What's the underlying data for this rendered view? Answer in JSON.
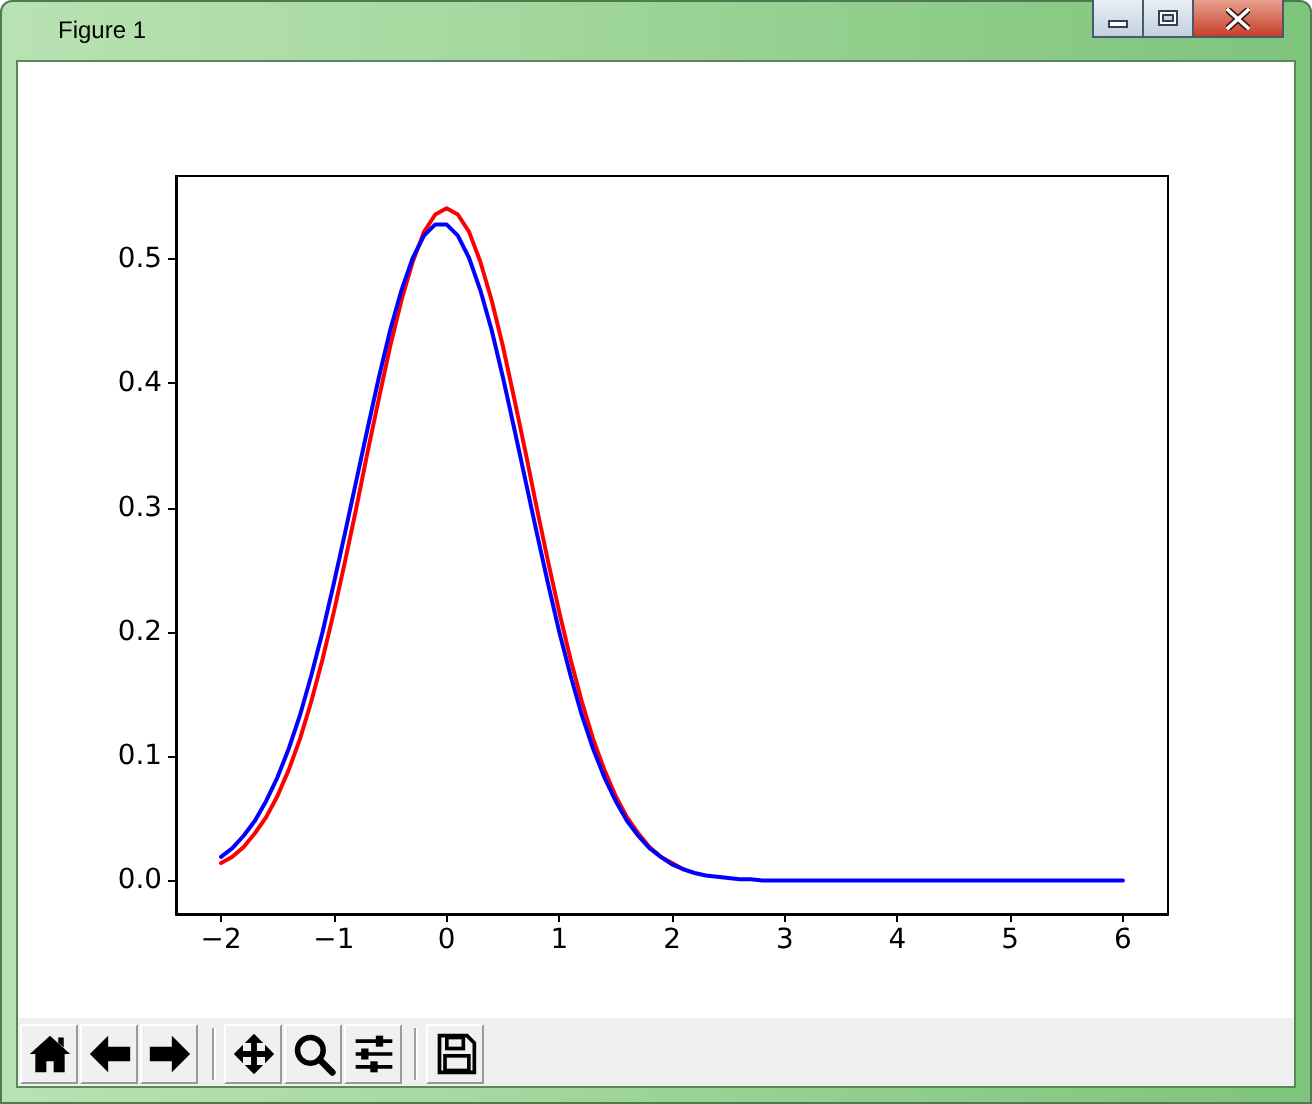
{
  "chart_data": {
    "type": "line",
    "title": "Figure 1",
    "x": [
      -2,
      -1.9,
      -1.8,
      -1.7,
      -1.6,
      -1.5,
      -1.4,
      -1.3,
      -1.2,
      -1.1,
      -1,
      -0.9,
      -0.8,
      -0.7,
      -0.6,
      -0.5,
      -0.4,
      -0.3,
      -0.2,
      -0.1,
      0,
      0.1,
      0.2,
      0.3,
      0.4,
      0.5,
      0.6,
      0.7,
      0.8,
      0.9,
      1,
      1.1,
      1.2,
      1.3,
      1.4,
      1.5,
      1.6,
      1.7,
      1.8,
      1.9,
      2,
      2.1,
      2.2,
      2.3,
      2.4,
      2.5,
      2.6,
      2.7,
      2.8,
      2.9,
      3,
      3.5,
      4,
      4.5,
      5,
      5.5,
      6
    ],
    "series": [
      {
        "color": "#ff0000",
        "values": [
          0.014,
          0.019,
          0.027,
          0.038,
          0.051,
          0.068,
          0.089,
          0.114,
          0.144,
          0.178,
          0.216,
          0.257,
          0.3,
          0.345,
          0.388,
          0.43,
          0.467,
          0.498,
          0.522,
          0.536,
          0.541,
          0.536,
          0.522,
          0.498,
          0.467,
          0.43,
          0.388,
          0.345,
          0.3,
          0.257,
          0.216,
          0.178,
          0.144,
          0.114,
          0.089,
          0.068,
          0.051,
          0.038,
          0.027,
          0.019,
          0.014,
          0.009,
          null,
          null,
          null,
          null,
          null,
          null,
          null,
          null,
          null,
          null,
          null,
          null,
          null,
          null,
          null
        ]
      },
      {
        "color": "#0000ff",
        "values": [
          0.019,
          0.026,
          0.036,
          0.048,
          0.064,
          0.083,
          0.106,
          0.133,
          0.165,
          0.2,
          0.239,
          0.28,
          0.322,
          0.364,
          0.405,
          0.443,
          0.475,
          0.501,
          0.519,
          0.528,
          0.528,
          0.519,
          0.501,
          0.475,
          0.443,
          0.405,
          0.364,
          0.322,
          0.28,
          0.239,
          0.2,
          0.165,
          0.133,
          0.106,
          0.083,
          0.064,
          0.048,
          0.036,
          0.026,
          0.019,
          0.013,
          0.009,
          0.006,
          0.004,
          0.003,
          0.002,
          0.001,
          0.001,
          0,
          0,
          0,
          0,
          0,
          0,
          0,
          0,
          0
        ]
      }
    ],
    "xlim": [
      -2.4,
      6.4
    ],
    "ylim": [
      -0.027,
      0.567
    ],
    "xticks": [
      {
        "value": -2,
        "label": "−2"
      },
      {
        "value": -1,
        "label": "−1"
      },
      0,
      1,
      2,
      3,
      4,
      5,
      6
    ],
    "yticks": [
      {
        "value": 0,
        "label": "0.0"
      },
      0.1,
      0.2,
      0.3,
      0.4,
      0.5
    ]
  }
}
